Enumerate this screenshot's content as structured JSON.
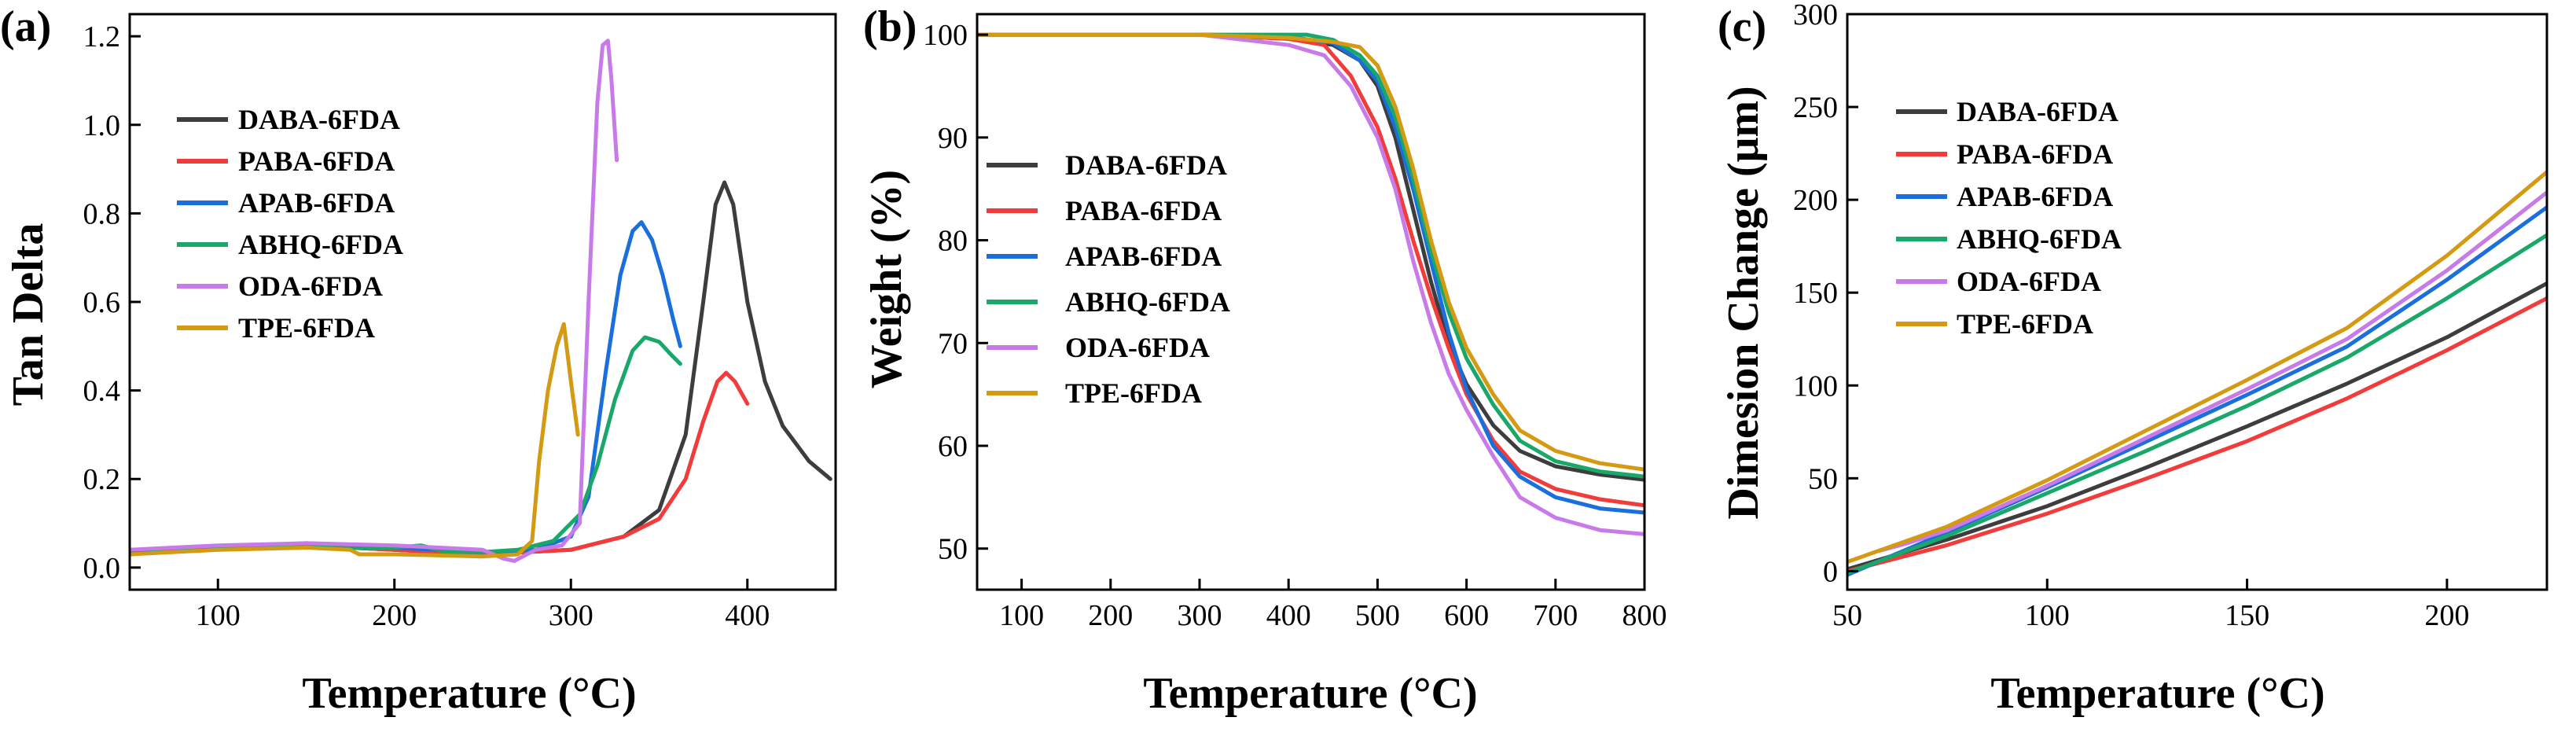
{
  "series_colors": {
    "DABA-6FDA": "#3d3d3d",
    "PABA-6FDA": "#f23c3c",
    "APAB-6FDA": "#1a6fdc",
    "ABHQ-6FDA": "#1aa86a",
    "ODA-6FDA": "#c77ae8",
    "TPE-6FDA": "#d49a12"
  },
  "chart_data": [
    {
      "panel": "(a)",
      "type": "line",
      "xlabel": "Temperature (°C)",
      "ylabel": "Tan Delta",
      "xlim": [
        50,
        450
      ],
      "ylim": [
        -0.05,
        1.25
      ],
      "xticks": [
        100,
        200,
        300,
        400
      ],
      "yticks": [
        0.0,
        0.2,
        0.4,
        0.6,
        0.8,
        1.0,
        1.2
      ],
      "ytick_labels": [
        "0.0",
        "0.2",
        "0.4",
        "0.6",
        "0.8",
        "1.0",
        "1.2"
      ],
      "legend_position": "top-left",
      "series": [
        {
          "name": "DABA-6FDA",
          "x": [
            50,
            100,
            150,
            200,
            250,
            300,
            330,
            350,
            365,
            375,
            382,
            387,
            392,
            400,
            410,
            420,
            435,
            447
          ],
          "y": [
            0.03,
            0.045,
            0.05,
            0.04,
            0.03,
            0.04,
            0.07,
            0.13,
            0.3,
            0.6,
            0.82,
            0.87,
            0.82,
            0.6,
            0.42,
            0.32,
            0.24,
            0.2
          ]
        },
        {
          "name": "PABA-6FDA",
          "x": [
            50,
            100,
            150,
            200,
            250,
            300,
            330,
            350,
            365,
            375,
            383,
            388,
            393,
            400
          ],
          "y": [
            0.03,
            0.045,
            0.05,
            0.04,
            0.03,
            0.04,
            0.07,
            0.11,
            0.2,
            0.33,
            0.42,
            0.44,
            0.42,
            0.37
          ]
        },
        {
          "name": "APAB-6FDA",
          "x": [
            50,
            100,
            150,
            200,
            250,
            280,
            300,
            310,
            320,
            328,
            335,
            340,
            346,
            352,
            358,
            362
          ],
          "y": [
            0.035,
            0.045,
            0.055,
            0.045,
            0.035,
            0.04,
            0.07,
            0.16,
            0.45,
            0.66,
            0.76,
            0.78,
            0.74,
            0.66,
            0.56,
            0.5
          ]
        },
        {
          "name": "ABHQ-6FDA",
          "x": [
            50,
            100,
            150,
            200,
            215,
            230,
            250,
            270,
            290,
            305,
            315,
            325,
            335,
            342,
            350,
            357,
            362
          ],
          "y": [
            0.04,
            0.045,
            0.045,
            0.045,
            0.05,
            0.035,
            0.035,
            0.04,
            0.06,
            0.12,
            0.23,
            0.38,
            0.49,
            0.52,
            0.51,
            0.48,
            0.46
          ]
        },
        {
          "name": "ODA-6FDA",
          "x": [
            50,
            100,
            150,
            200,
            250,
            262,
            268,
            280,
            295,
            305,
            310,
            315,
            318,
            321,
            323,
            326
          ],
          "y": [
            0.04,
            0.05,
            0.055,
            0.05,
            0.04,
            0.02,
            0.015,
            0.04,
            0.05,
            0.1,
            0.6,
            1.05,
            1.18,
            1.19,
            1.1,
            0.92
          ]
        },
        {
          "name": "TPE-6FDA",
          "x": [
            50,
            100,
            150,
            175,
            180,
            200,
            250,
            270,
            278,
            282,
            287,
            292,
            296,
            300,
            304
          ],
          "y": [
            0.03,
            0.04,
            0.045,
            0.04,
            0.03,
            0.03,
            0.025,
            0.03,
            0.06,
            0.24,
            0.4,
            0.5,
            0.55,
            0.42,
            0.3
          ]
        }
      ]
    },
    {
      "panel": "(b)",
      "type": "line",
      "xlabel": "Temperature (°C)",
      "ylabel": "Weight (%)",
      "xlim": [
        50,
        800
      ],
      "ylim": [
        46,
        102
      ],
      "xticks": [
        100,
        200,
        300,
        400,
        500,
        600,
        700,
        800
      ],
      "yticks": [
        50,
        60,
        70,
        80,
        90,
        100
      ],
      "ytick_labels": [
        "50",
        "60",
        "70",
        "80",
        "90",
        "100"
      ],
      "legend_position": "left-center",
      "series": [
        {
          "name": "DABA-6FDA",
          "x": [
            50,
            300,
            400,
            450,
            480,
            500,
            520,
            540,
            560,
            580,
            600,
            630,
            660,
            700,
            750,
            800
          ],
          "y": [
            100,
            100,
            99.6,
            99,
            97.5,
            95,
            90,
            83,
            76,
            70,
            66,
            62,
            59.5,
            58,
            57.2,
            56.7
          ]
        },
        {
          "name": "PABA-6FDA",
          "x": [
            50,
            300,
            400,
            440,
            470,
            500,
            520,
            540,
            560,
            580,
            600,
            630,
            660,
            700,
            750,
            800
          ],
          "y": [
            100,
            100,
            99.6,
            99,
            96,
            91,
            86,
            80,
            74.5,
            69.5,
            65,
            60.5,
            57.5,
            55.8,
            54.8,
            54.2
          ]
        },
        {
          "name": "APAB-6FDA",
          "x": [
            50,
            300,
            400,
            450,
            480,
            500,
            520,
            540,
            560,
            580,
            600,
            630,
            660,
            700,
            750,
            800
          ],
          "y": [
            100,
            100,
            99.8,
            99.2,
            97.5,
            95.5,
            91,
            85,
            78,
            71,
            65.5,
            60,
            57,
            55,
            53.9,
            53.5
          ]
        },
        {
          "name": "ABHQ-6FDA",
          "x": [
            50,
            300,
            420,
            450,
            480,
            500,
            520,
            540,
            560,
            580,
            600,
            630,
            660,
            700,
            750,
            800
          ],
          "y": [
            100,
            100,
            100,
            99.5,
            98,
            96,
            92,
            86,
            79,
            73,
            68.5,
            64,
            60.5,
            58.5,
            57.5,
            57
          ]
        },
        {
          "name": "ODA-6FDA",
          "x": [
            50,
            300,
            400,
            440,
            470,
            500,
            520,
            540,
            560,
            580,
            600,
            630,
            660,
            700,
            750,
            800
          ],
          "y": [
            100,
            100,
            99,
            98,
            95,
            90,
            85,
            78,
            72,
            67,
            63.5,
            59,
            55,
            53,
            51.8,
            51.4
          ]
        },
        {
          "name": "TPE-6FDA",
          "x": [
            50,
            300,
            400,
            450,
            480,
            500,
            520,
            540,
            560,
            580,
            600,
            630,
            660,
            700,
            750,
            800
          ],
          "y": [
            100,
            100,
            99.7,
            99.3,
            98.8,
            97,
            93,
            87,
            80,
            74,
            69.5,
            65,
            61.5,
            59.5,
            58.3,
            57.7
          ]
        }
      ]
    },
    {
      "panel": "(c)",
      "type": "line",
      "xlabel": "Temperature (°C)",
      "ylabel": "Dimesion Change (μm)",
      "xlim": [
        50,
        225
      ],
      "ylim": [
        -10,
        300
      ],
      "xticks": [
        50,
        100,
        150,
        200
      ],
      "yticks": [
        0,
        50,
        100,
        150,
        200,
        250,
        300
      ],
      "ytick_labels": [
        "0",
        "50",
        "100",
        "150",
        "200",
        "250",
        "300"
      ],
      "legend_position": "top-left",
      "series": [
        {
          "name": "DABA-6FDA",
          "x": [
            50,
            75,
            100,
            125,
            150,
            175,
            200,
            225
          ],
          "y": [
            1,
            17,
            35,
            56,
            78,
            101,
            126,
            155
          ]
        },
        {
          "name": "PABA-6FDA",
          "x": [
            50,
            75,
            100,
            125,
            150,
            175,
            200,
            225
          ],
          "y": [
            0,
            14,
            31,
            50,
            70,
            93,
            119,
            147
          ]
        },
        {
          "name": "APAB-6FDA",
          "x": [
            50,
            75,
            100,
            125,
            150,
            175,
            200,
            225
          ],
          "y": [
            -2,
            21,
            45,
            70,
            95,
            121,
            157,
            196
          ]
        },
        {
          "name": "ABHQ-6FDA",
          "x": [
            50,
            75,
            100,
            125,
            150,
            175,
            200,
            225
          ],
          "y": [
            -1,
            19,
            42,
            65,
            89,
            115,
            147,
            181
          ]
        },
        {
          "name": "ODA-6FDA",
          "x": [
            58,
            65,
            75,
            100,
            125,
            150,
            175,
            200,
            225
          ],
          "y": [
            11,
            15,
            22,
            46,
            72,
            98,
            125,
            162,
            204
          ]
        },
        {
          "name": "TPE-6FDA",
          "x": [
            50,
            75,
            100,
            125,
            150,
            175,
            200,
            225
          ],
          "y": [
            5,
            24,
            49,
            76,
            103,
            131,
            170,
            215
          ]
        }
      ]
    }
  ]
}
